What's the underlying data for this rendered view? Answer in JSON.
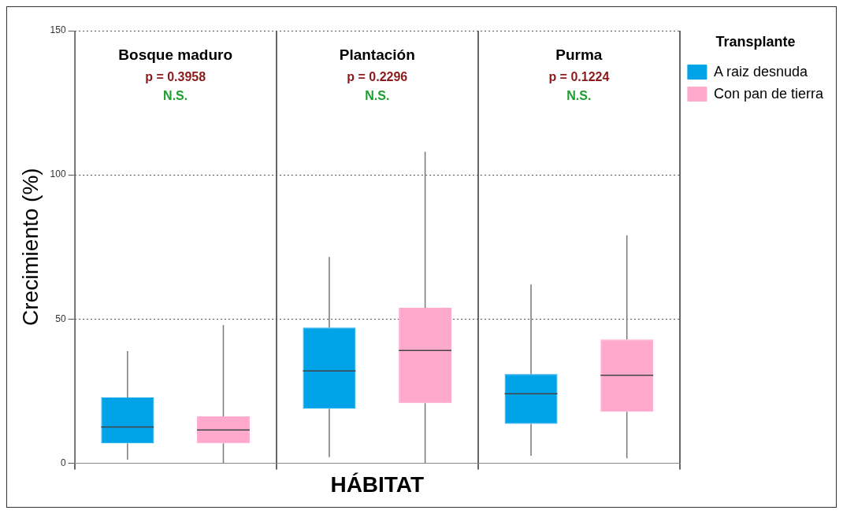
{
  "chart_data": {
    "type": "box",
    "xlabel": "HÁBITAT",
    "ylabel": "Crecimiento (%)",
    "legend_title": "Transplante",
    "legend": "top right",
    "grid": true,
    "categories": [
      "Bosque maduro",
      "Plantación",
      "Purma"
    ],
    "ylim": [
      0,
      150
    ],
    "yticks": [
      0,
      50,
      100,
      150
    ],
    "series": [
      {
        "name": "A raiz desnuda",
        "color": "#00a2e8",
        "boxes": [
          {
            "low": 1.2,
            "q1": 6.9,
            "median": 12.5,
            "q3": 22.8,
            "high": 38.9
          },
          {
            "low": 2.1,
            "q1": 18.9,
            "median": 32,
            "q3": 47,
            "high": 71.5
          },
          {
            "low": 2.6,
            "q1": 13.6,
            "median": 24.1,
            "q3": 30.9,
            "high": 62
          }
        ]
      },
      {
        "name": "Con pan de tierra",
        "color": "#ffaacc",
        "boxes": [
          {
            "low": 0,
            "q1": 6.9,
            "median": 11.5,
            "q3": 16.2,
            "high": 47.9
          },
          {
            "low": 0,
            "q1": 20.8,
            "median": 39.1,
            "q3": 53.9,
            "high": 108
          },
          {
            "low": 1.7,
            "q1": 17.8,
            "median": 30.5,
            "q3": 42.9,
            "high": 79
          }
        ]
      }
    ],
    "annotations": [
      "p = 0.3958",
      "N.S.",
      "p = 0.2296",
      "N.S.",
      "p = 0.1224",
      "N.S."
    ]
  }
}
